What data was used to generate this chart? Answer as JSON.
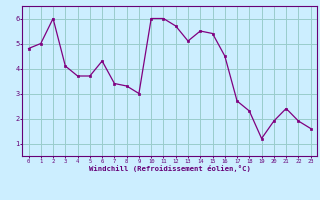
{
  "x": [
    0,
    1,
    2,
    3,
    4,
    5,
    6,
    7,
    8,
    9,
    10,
    11,
    12,
    13,
    14,
    15,
    16,
    17,
    18,
    19,
    20,
    21,
    22,
    23
  ],
  "y": [
    4.8,
    5.0,
    6.0,
    4.1,
    3.7,
    3.7,
    4.3,
    3.4,
    3.3,
    3.0,
    6.0,
    6.0,
    5.7,
    5.1,
    5.5,
    5.4,
    4.5,
    2.7,
    2.3,
    1.2,
    1.9,
    2.4,
    1.9,
    1.6
  ],
  "xlabel": "Windchill (Refroidissement éolien,°C)",
  "ylim": [
    0.5,
    6.5
  ],
  "xlim": [
    -0.5,
    23.5
  ],
  "yticks": [
    1,
    2,
    3,
    4,
    5,
    6
  ],
  "xticks": [
    0,
    1,
    2,
    3,
    4,
    5,
    6,
    7,
    8,
    9,
    10,
    11,
    12,
    13,
    14,
    15,
    16,
    17,
    18,
    19,
    20,
    21,
    22,
    23
  ],
  "line_color": "#800080",
  "marker_color": "#800080",
  "bg_color": "#cceeff",
  "grid_color": "#99cccc",
  "axes_color": "#660077",
  "tick_label_color": "#660077",
  "xlabel_color": "#660077"
}
